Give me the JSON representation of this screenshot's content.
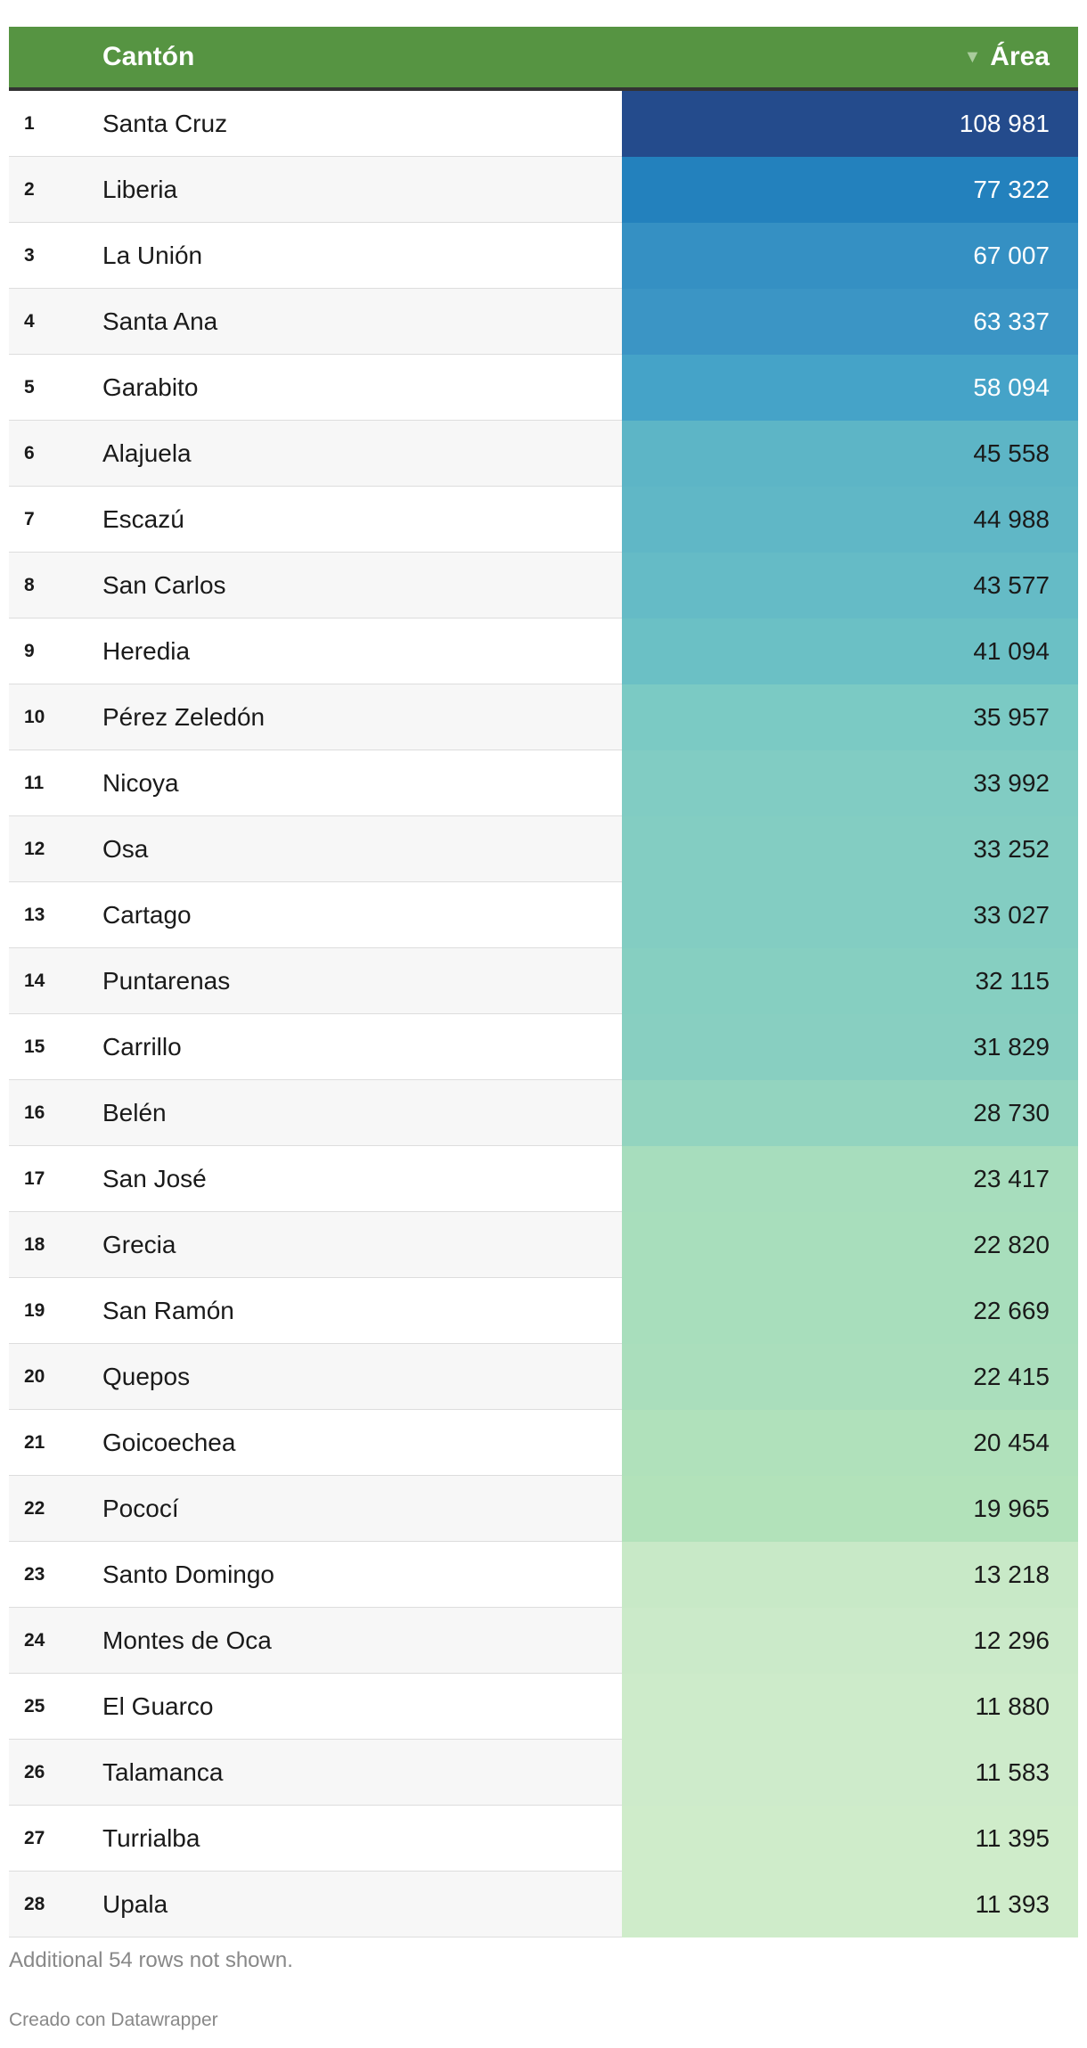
{
  "header": {
    "col_name": "Cantón",
    "col_value": "Área",
    "sort_icon": "▼"
  },
  "footer": {
    "note": "Additional 54 rows not shown.",
    "credit": "Creado con Datawrapper"
  },
  "colors": {
    "header_bg": "#569442",
    "header_border": "#333333",
    "row_even": "#f7f7f7",
    "row_odd": "#ffffff"
  },
  "chart_data": {
    "type": "table",
    "columns": [
      "",
      "Cantón",
      "Área"
    ],
    "rows": [
      {
        "rank": "1",
        "name": "Santa Cruz",
        "value": 108981,
        "label": "108 981",
        "color": "#244b8c",
        "text_color": "#ffffff"
      },
      {
        "rank": "2",
        "name": "Liberia",
        "value": 77322,
        "label": "77 322",
        "color": "#2381bd",
        "text_color": "#ffffff"
      },
      {
        "rank": "3",
        "name": "La Unión",
        "value": 67007,
        "label": "67 007",
        "color": "#3590c3",
        "text_color": "#ffffff"
      },
      {
        "rank": "4",
        "name": "Santa Ana",
        "value": 63337,
        "label": "63 337",
        "color": "#3b95c5",
        "text_color": "#ffffff"
      },
      {
        "rank": "5",
        "name": "Garabito",
        "value": 58094,
        "label": "58 094",
        "color": "#45a3c8",
        "text_color": "#ffffff"
      },
      {
        "rank": "6",
        "name": "Alajuela",
        "value": 45558,
        "label": "45 558",
        "color": "#5db5c6",
        "text_color": "#1a1a1a"
      },
      {
        "rank": "7",
        "name": "Escazú",
        "value": 44988,
        "label": "44 988",
        "color": "#60b7c6",
        "text_color": "#1a1a1a"
      },
      {
        "rank": "8",
        "name": "San Carlos",
        "value": 43577,
        "label": "43 577",
        "color": "#65bbc6",
        "text_color": "#1a1a1a"
      },
      {
        "rank": "9",
        "name": "Heredia",
        "value": 41094,
        "label": "41 094",
        "color": "#6bc0c5",
        "text_color": "#1a1a1a"
      },
      {
        "rank": "10",
        "name": "Pérez Zeledón",
        "value": 35957,
        "label": "35 957",
        "color": "#7bcac4",
        "text_color": "#1a1a1a"
      },
      {
        "rank": "11",
        "name": "Nicoya",
        "value": 33992,
        "label": "33 992",
        "color": "#81ccc3",
        "text_color": "#1a1a1a"
      },
      {
        "rank": "12",
        "name": "Osa",
        "value": 33252,
        "label": "33 252",
        "color": "#83cdc2",
        "text_color": "#1a1a1a"
      },
      {
        "rank": "13",
        "name": "Cartago",
        "value": 33027,
        "label": "33 027",
        "color": "#83cdc2",
        "text_color": "#1a1a1a"
      },
      {
        "rank": "14",
        "name": "Puntarenas",
        "value": 32115,
        "label": "32 115",
        "color": "#86cfc1",
        "text_color": "#1a1a1a"
      },
      {
        "rank": "15",
        "name": "Carrillo",
        "value": 31829,
        "label": "31 829",
        "color": "#88cfc1",
        "text_color": "#1a1a1a"
      },
      {
        "rank": "16",
        "name": "Belén",
        "value": 28730,
        "label": "28 730",
        "color": "#93d4bf",
        "text_color": "#1a1a1a"
      },
      {
        "rank": "17",
        "name": "San José",
        "value": 23417,
        "label": "23 417",
        "color": "#a7ddbd",
        "text_color": "#1a1a1a"
      },
      {
        "rank": "18",
        "name": "Grecia",
        "value": 22820,
        "label": "22 820",
        "color": "#a8debc",
        "text_color": "#1a1a1a"
      },
      {
        "rank": "19",
        "name": "San Ramón",
        "value": 22669,
        "label": "22 669",
        "color": "#a8debc",
        "text_color": "#1a1a1a"
      },
      {
        "rank": "20",
        "name": "Quepos",
        "value": 22415,
        "label": "22 415",
        "color": "#aadebc",
        "text_color": "#1a1a1a"
      },
      {
        "rank": "21",
        "name": "Goicoechea",
        "value": 20454,
        "label": "20 454",
        "color": "#b0e1bb",
        "text_color": "#1a1a1a"
      },
      {
        "rank": "22",
        "name": "Pococí",
        "value": 19965,
        "label": "19 965",
        "color": "#b2e2ba",
        "text_color": "#1a1a1a"
      },
      {
        "rank": "23",
        "name": "Santo Domingo",
        "value": 13218,
        "label": "13 218",
        "color": "#c8e9c7",
        "text_color": "#1a1a1a"
      },
      {
        "rank": "24",
        "name": "Montes de Oca",
        "value": 12296,
        "label": "12 296",
        "color": "#cbeac9",
        "text_color": "#1a1a1a"
      },
      {
        "rank": "25",
        "name": "El Guarco",
        "value": 11880,
        "label": "11 880",
        "color": "#cdebca",
        "text_color": "#1a1a1a"
      },
      {
        "rank": "26",
        "name": "Talamanca",
        "value": 11583,
        "label": "11 583",
        "color": "#ceebcb",
        "text_color": "#1a1a1a"
      },
      {
        "rank": "27",
        "name": "Turrialba",
        "value": 11395,
        "label": "11 395",
        "color": "#cfecca",
        "text_color": "#1a1a1a"
      },
      {
        "rank": "28",
        "name": "Upala",
        "value": 11393,
        "label": "11 393",
        "color": "#cfecca",
        "text_color": "#1a1a1a"
      }
    ]
  }
}
